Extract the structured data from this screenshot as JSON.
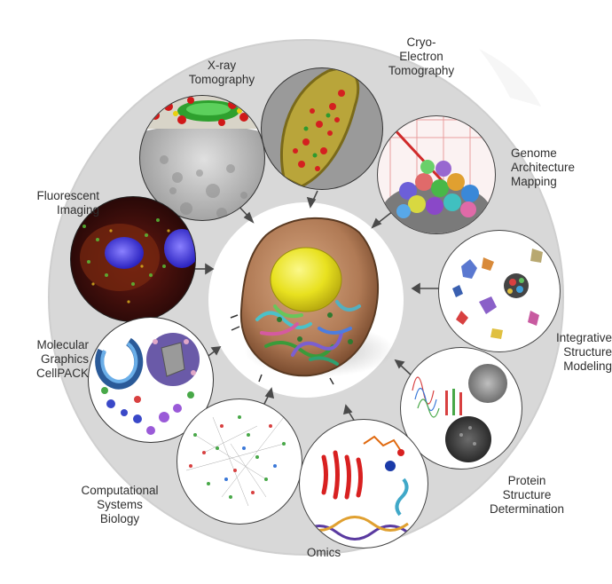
{
  "techniques": [
    {
      "id": "xray",
      "label": "X-ray\nTomography"
    },
    {
      "id": "cryo",
      "label": "Cryo-\nElectron\nTomography"
    },
    {
      "id": "genome",
      "label": "Genome\nArchitecture\nMapping"
    },
    {
      "id": "fluor",
      "label": "Fluorescent\nImaging"
    },
    {
      "id": "integrative",
      "label": "Integrative\nStructure\nModeling"
    },
    {
      "id": "molgfx",
      "label": "Molecular\nGraphics\nCellPACK"
    },
    {
      "id": "protein",
      "label": "Protein\nStructure\nDetermination"
    },
    {
      "id": "compsys",
      "label": "Computational\nSystems\nBiology"
    },
    {
      "id": "omics",
      "label": "Omics"
    }
  ],
  "colors": {
    "ring": "#d7d7d7",
    "arrow": "#4a4a4a",
    "cell_membrane": "#a0704a",
    "nucleus": "#e6e020",
    "fluor_nucleus": "#3a2fd8"
  }
}
